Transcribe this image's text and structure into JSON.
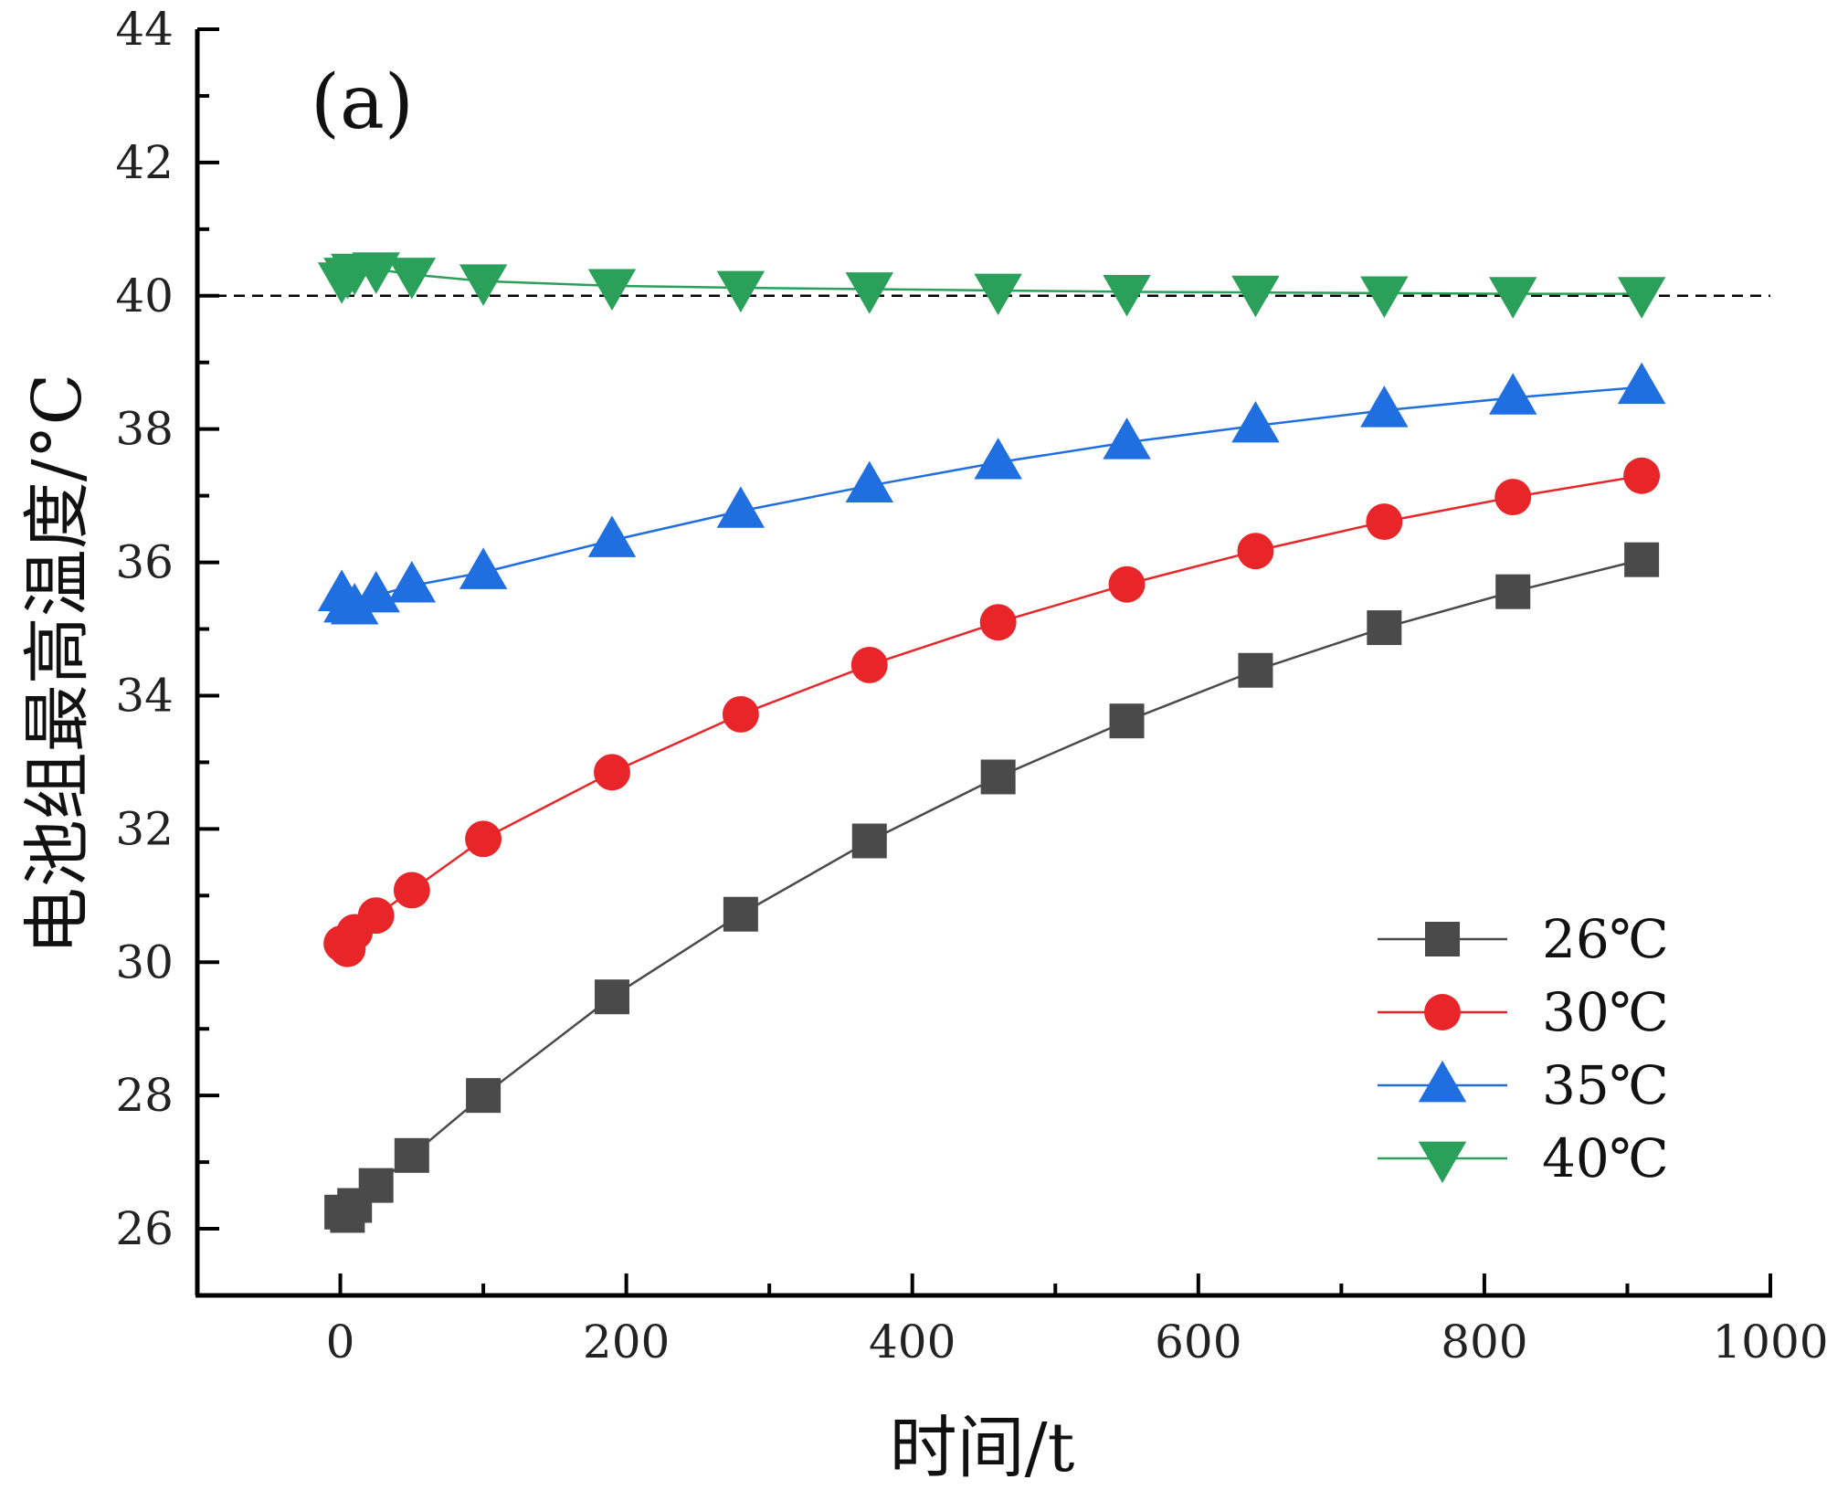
{
  "chart_data": {
    "type": "line",
    "title": "",
    "panel_label": "(a)",
    "xlabel": "时间/t",
    "ylabel": "电池组最高温度/°C",
    "xlim": [
      -100,
      1000
    ],
    "ylim": [
      25,
      44
    ],
    "x_ticks": [
      0,
      200,
      400,
      600,
      800,
      1000
    ],
    "x_tick_labels": [
      "0",
      "200",
      "400",
      "600",
      "800",
      "1000"
    ],
    "y_ticks": [
      26,
      28,
      30,
      32,
      34,
      36,
      38,
      40,
      42,
      44
    ],
    "y_tick_labels": [
      "26",
      "28",
      "30",
      "32",
      "34",
      "36",
      "38",
      "40",
      "42",
      "44"
    ],
    "reference_line": {
      "y": 40,
      "style": "dashed",
      "color": "#000000"
    },
    "legend_position": "bottom-right",
    "x": [
      1,
      5,
      10,
      25,
      50,
      100,
      190,
      280,
      370,
      460,
      550,
      640,
      730,
      820,
      910
    ],
    "series": [
      {
        "name": "26℃",
        "marker": "square",
        "color": "#4a4a4a",
        "values": [
          26.25,
          26.2,
          26.35,
          26.65,
          27.1,
          28.0,
          29.48,
          30.72,
          31.82,
          32.78,
          33.62,
          34.38,
          35.02,
          35.56,
          36.04
        ]
      },
      {
        "name": "30℃",
        "marker": "circle",
        "color": "#e8262a",
        "values": [
          30.28,
          30.2,
          30.45,
          30.7,
          31.08,
          31.85,
          32.85,
          33.72,
          34.46,
          35.1,
          35.67,
          36.17,
          36.61,
          36.98,
          37.3
        ]
      },
      {
        "name": "35℃",
        "marker": "triangle-up",
        "color": "#1f6fe0",
        "values": [
          35.52,
          35.35,
          35.32,
          35.5,
          35.65,
          35.85,
          36.33,
          36.77,
          37.15,
          37.5,
          37.8,
          38.05,
          38.28,
          38.47,
          38.63
        ]
      },
      {
        "name": "40℃",
        "marker": "triangle-down",
        "color": "#2aa05a",
        "values": [
          40.25,
          40.32,
          40.38,
          40.4,
          40.32,
          40.22,
          40.15,
          40.12,
          40.1,
          40.08,
          40.06,
          40.05,
          40.04,
          40.03,
          40.03
        ]
      }
    ]
  }
}
